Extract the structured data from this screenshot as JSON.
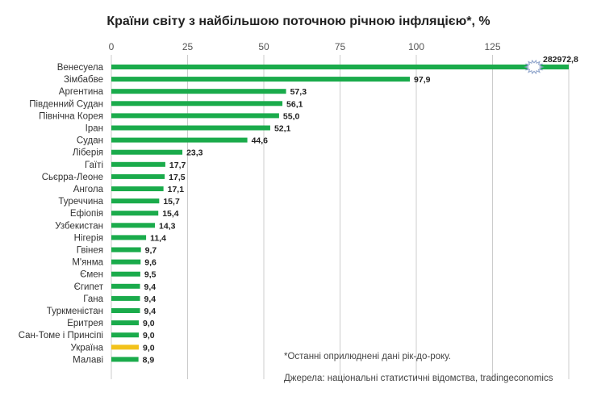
{
  "chart_data": {
    "type": "bar",
    "orientation": "horizontal",
    "title": "Країни світу з найбільшою поточною річною інфляцією*, %",
    "x_ticks": [
      0,
      25,
      50,
      75,
      100,
      125
    ],
    "xlim": [
      0,
      150
    ],
    "grid": "vertical",
    "axis_break": true,
    "categories": [
      "Венесуела",
      "Зімбабве",
      "Аргентина",
      "Південний Судан",
      "Північна Корея",
      "Іран",
      "Судан",
      "Ліберія",
      "Гаїті",
      "Сьєрра-Леоне",
      "Ангола",
      "Туреччина",
      "Ефіопія",
      "Узбекистан",
      "Нігерія",
      "Гвінея",
      "М'янма",
      "Ємен",
      "Єгипет",
      "Гана",
      "Туркменістан",
      "Еритрея",
      "Сан-Томе і Принсіпі",
      "Україна",
      "Малаві"
    ],
    "values": [
      282972.8,
      97.9,
      57.3,
      56.1,
      55.0,
      52.1,
      44.6,
      23.3,
      17.7,
      17.5,
      17.1,
      15.7,
      15.4,
      14.3,
      11.4,
      9.7,
      9.6,
      9.5,
      9.4,
      9.4,
      9.4,
      9.0,
      9.0,
      9.0,
      8.9
    ],
    "labels": [
      "282972,8",
      "97,9",
      "57,3",
      "56,1",
      "55,0",
      "52,1",
      "44,6",
      "23,3",
      "17,7",
      "17,5",
      "17,1",
      "15,7",
      "15,4",
      "14,3",
      "11,4",
      "9,7",
      "9,6",
      "9,5",
      "9,4",
      "9,4",
      "9,4",
      "9,0",
      "9,0",
      "9,0",
      "8,9"
    ],
    "highlight": "Україна",
    "colors": {
      "bar": "#1aab4b",
      "highlight": "#f2c21b",
      "grid": "#cccccc"
    }
  },
  "footnotes": {
    "note": "*Останні оприлюднені дані рік-до-року.",
    "source": "Джерела: національні статистичні відомства, tradingeconomics"
  }
}
